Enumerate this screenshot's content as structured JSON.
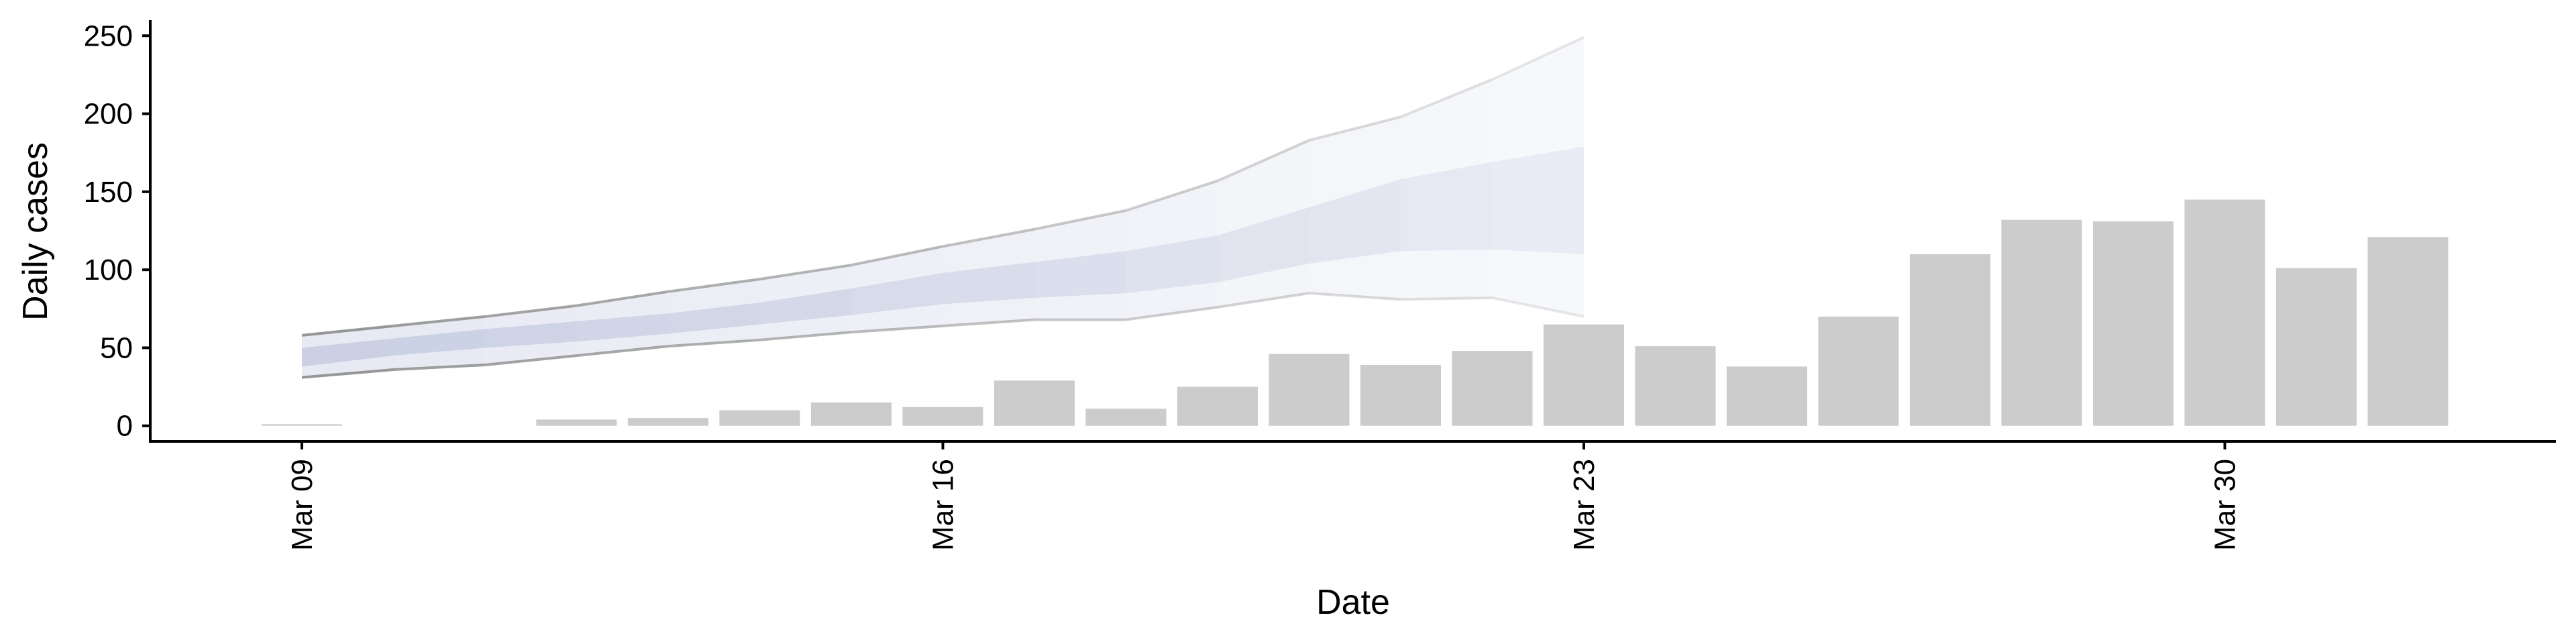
{
  "chart_data": {
    "type": "bar",
    "title": "",
    "xlabel": "Date",
    "ylabel": "Daily cases",
    "ylim": [
      -10,
      260
    ],
    "xlim": [
      "2020-03-07",
      "2020-04-03"
    ],
    "y_ticks": [
      0,
      50,
      100,
      150,
      200,
      250
    ],
    "x_ticks": [
      {
        "date": "2020-03-09",
        "label": "Mar 09"
      },
      {
        "date": "2020-03-16",
        "label": "Mar 16"
      },
      {
        "date": "2020-03-23",
        "label": "Mar 23"
      },
      {
        "date": "2020-03-30",
        "label": "Mar 30"
      }
    ],
    "grid": false,
    "series": [
      {
        "type": "bar",
        "color": "#cccccc",
        "points": [
          {
            "x": "2020-03-09",
            "y": 1
          },
          {
            "x": "2020-03-10",
            "y": 0
          },
          {
            "x": "2020-03-11",
            "y": 0
          },
          {
            "x": "2020-03-12",
            "y": 4
          },
          {
            "x": "2020-03-13",
            "y": 5
          },
          {
            "x": "2020-03-14",
            "y": 10
          },
          {
            "x": "2020-03-15",
            "y": 15
          },
          {
            "x": "2020-03-16",
            "y": 12
          },
          {
            "x": "2020-03-17",
            "y": 29
          },
          {
            "x": "2020-03-18",
            "y": 11
          },
          {
            "x": "2020-03-19",
            "y": 25
          },
          {
            "x": "2020-03-20",
            "y": 46
          },
          {
            "x": "2020-03-21",
            "y": 39
          },
          {
            "x": "2020-03-22",
            "y": 48
          },
          {
            "x": "2020-03-23",
            "y": 65
          },
          {
            "x": "2020-03-24",
            "y": 51
          },
          {
            "x": "2020-03-25",
            "y": 38
          },
          {
            "x": "2020-03-26",
            "y": 70
          },
          {
            "x": "2020-03-27",
            "y": 110
          },
          {
            "x": "2020-03-28",
            "y": 132
          },
          {
            "x": "2020-03-29",
            "y": 131
          },
          {
            "x": "2020-03-30",
            "y": 145
          },
          {
            "x": "2020-03-31",
            "y": 101
          },
          {
            "x": "2020-04-01",
            "y": 121
          }
        ]
      },
      {
        "type": "band",
        "color": "#e6e8f2",
        "points": [
          {
            "x": "2020-03-09",
            "low": 31,
            "high": 58
          },
          {
            "x": "2020-03-10",
            "low": 36,
            "high": 64
          },
          {
            "x": "2020-03-11",
            "low": 39,
            "high": 70
          },
          {
            "x": "2020-03-12",
            "low": 45,
            "high": 77
          },
          {
            "x": "2020-03-13",
            "low": 51,
            "high": 86
          },
          {
            "x": "2020-03-14",
            "low": 55,
            "high": 94
          },
          {
            "x": "2020-03-15",
            "low": 60,
            "high": 103
          },
          {
            "x": "2020-03-16",
            "low": 64,
            "high": 115
          },
          {
            "x": "2020-03-17",
            "low": 68,
            "high": 126
          },
          {
            "x": "2020-03-18",
            "low": 68,
            "high": 138
          },
          {
            "x": "2020-03-19",
            "low": 76,
            "high": 157
          },
          {
            "x": "2020-03-20",
            "low": 85,
            "high": 183
          },
          {
            "x": "2020-03-21",
            "low": 81,
            "high": 198
          },
          {
            "x": "2020-03-22",
            "low": 82,
            "high": 222
          },
          {
            "x": "2020-03-23",
            "low": 70,
            "high": 249
          }
        ]
      },
      {
        "type": "band",
        "color": "#c9cfe3",
        "points": [
          {
            "x": "2020-03-09",
            "low": 38,
            "high": 50
          },
          {
            "x": "2020-03-10",
            "low": 45,
            "high": 56
          },
          {
            "x": "2020-03-11",
            "low": 50,
            "high": 62
          },
          {
            "x": "2020-03-12",
            "low": 54,
            "high": 67
          },
          {
            "x": "2020-03-13",
            "low": 59,
            "high": 72
          },
          {
            "x": "2020-03-14",
            "low": 65,
            "high": 79
          },
          {
            "x": "2020-03-15",
            "low": 71,
            "high": 88
          },
          {
            "x": "2020-03-16",
            "low": 78,
            "high": 98
          },
          {
            "x": "2020-03-17",
            "low": 82,
            "high": 105
          },
          {
            "x": "2020-03-18",
            "low": 85,
            "high": 112
          },
          {
            "x": "2020-03-19",
            "low": 92,
            "high": 122
          },
          {
            "x": "2020-03-20",
            "low": 104,
            "high": 140
          },
          {
            "x": "2020-03-21",
            "low": 112,
            "high": 158
          },
          {
            "x": "2020-03-22",
            "low": 113,
            "high": 169
          },
          {
            "x": "2020-03-23",
            "low": 110,
            "high": 179
          }
        ]
      }
    ]
  }
}
